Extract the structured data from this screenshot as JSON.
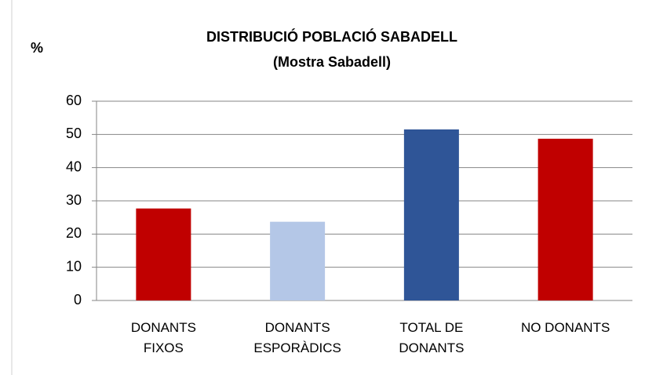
{
  "chart_data": {
    "type": "bar",
    "title": "DISTRIBUCIÓ POBLACIÓ SABADELL",
    "subtitle": "(Mostra Sabadell)",
    "y_label": "%",
    "categories": [
      "DONANTS FIXOS",
      "DONANTS ESPORÀDICS",
      "TOTAL DE DONANTS",
      "NO DONANTS"
    ],
    "values": [
      27.7,
      23.7,
      51.5,
      48.7
    ],
    "colors": [
      "#c00000",
      "#b4c7e7",
      "#2f5597",
      "#c00000"
    ],
    "ylim": [
      0,
      60
    ],
    "yticks": [
      0,
      10,
      20,
      30,
      40,
      50,
      60
    ],
    "grid": true
  }
}
